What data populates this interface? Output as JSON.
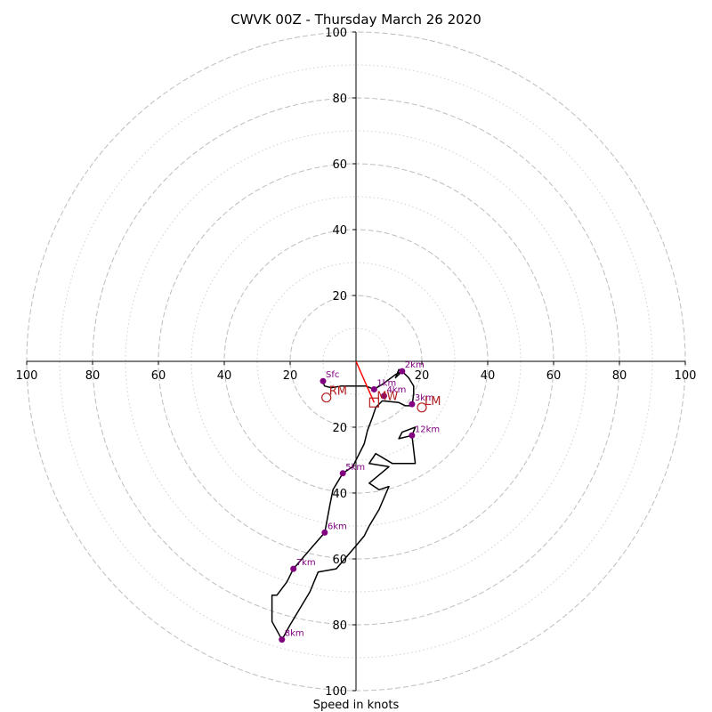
{
  "chart_data": {
    "type": "hodograph",
    "title": "CWVK 00Z - Thursday March 26 2020",
    "xlabel": "Speed in knots",
    "xlim": [
      -100,
      100
    ],
    "ylim": [
      -100,
      100
    ],
    "ring_major": [
      20,
      40,
      60,
      80,
      100
    ],
    "ring_minor": [
      10,
      30,
      50,
      70,
      90
    ],
    "x_ticks": [
      {
        "value": -100,
        "label": "100"
      },
      {
        "value": -80,
        "label": "80"
      },
      {
        "value": -60,
        "label": "60"
      },
      {
        "value": -40,
        "label": "40"
      },
      {
        "value": -20,
        "label": "20"
      },
      {
        "value": 20,
        "label": "20"
      },
      {
        "value": 40,
        "label": "40"
      },
      {
        "value": 60,
        "label": "60"
      },
      {
        "value": 80,
        "label": "80"
      },
      {
        "value": 100,
        "label": "100"
      }
    ],
    "y_ticks": [
      {
        "value": 100,
        "label": "100"
      },
      {
        "value": 80,
        "label": "80"
      },
      {
        "value": 60,
        "label": "60"
      },
      {
        "value": 40,
        "label": "40"
      },
      {
        "value": 20,
        "label": "20"
      },
      {
        "value": -20,
        "label": "20"
      },
      {
        "value": -40,
        "label": "40"
      },
      {
        "value": -60,
        "label": "60"
      },
      {
        "value": -80,
        "label": "80"
      },
      {
        "value": -100,
        "label": "100"
      }
    ],
    "hodograph_trace": [
      [
        -10.5,
        -5.5
      ],
      [
        -9.5,
        -7.5
      ],
      [
        -7.5,
        -8
      ],
      [
        -4.5,
        -7.5
      ],
      [
        3,
        -7.5
      ],
      [
        5.5,
        -8.5
      ],
      [
        8,
        -7
      ],
      [
        10,
        -5.5
      ],
      [
        12,
        -4
      ],
      [
        14,
        -3
      ],
      [
        13,
        -4
      ],
      [
        12,
        -5
      ],
      [
        13,
        -2.5
      ],
      [
        14,
        -3
      ],
      [
        16,
        -5
      ],
      [
        17.5,
        -7.5
      ],
      [
        17.5,
        -10
      ],
      [
        17,
        -13.5
      ],
      [
        15,
        -13.5
      ],
      [
        13,
        -12.5
      ],
      [
        8,
        -12
      ],
      [
        6,
        -14
      ],
      [
        5,
        -17
      ],
      [
        3.5,
        -21
      ],
      [
        2.5,
        -25
      ],
      [
        -1,
        -32
      ],
      [
        -4,
        -34
      ],
      [
        -7,
        -39
      ],
      [
        -8,
        -44
      ],
      [
        -9.5,
        -52
      ],
      [
        -13,
        -56
      ],
      [
        -19,
        -63
      ],
      [
        -21,
        -67
      ],
      [
        -24,
        -71
      ],
      [
        -25.5,
        -71
      ],
      [
        -25.5,
        -79
      ],
      [
        -22.5,
        -84.5
      ],
      [
        -20,
        -80
      ],
      [
        -14,
        -70
      ],
      [
        -11.5,
        -64
      ],
      [
        -6,
        -63
      ],
      [
        0,
        -56
      ],
      [
        2.5,
        -53
      ],
      [
        4,
        -50
      ],
      [
        7,
        -45
      ],
      [
        10,
        -38
      ],
      [
        7,
        -39
      ],
      [
        4,
        -37
      ],
      [
        10,
        -32
      ],
      [
        4,
        -31
      ],
      [
        6,
        -28
      ],
      [
        11,
        -31
      ],
      [
        18,
        -31
      ],
      [
        17,
        -22.5
      ],
      [
        13,
        -23.5
      ],
      [
        14,
        -21.5
      ],
      [
        18,
        -20
      ],
      [
        17,
        -22.5
      ]
    ],
    "height_markers": [
      {
        "label": "Sfc",
        "x": -10,
        "y": -6
      },
      {
        "label": "1km",
        "x": 5.5,
        "y": -8.5
      },
      {
        "label": "2km",
        "x": 14,
        "y": -3
      },
      {
        "label": "3km",
        "x": 17,
        "y": -13
      },
      {
        "label": "4km",
        "x": 8.5,
        "y": -10.5
      },
      {
        "label": "5km",
        "x": -4,
        "y": -34
      },
      {
        "label": "6km",
        "x": -9.5,
        "y": -52
      },
      {
        "label": "7km",
        "x": -19,
        "y": -63
      },
      {
        "label": "8km",
        "x": -22.5,
        "y": -84.5
      },
      {
        "label": "12km",
        "x": 17,
        "y": -22.5
      }
    ],
    "motions": [
      {
        "label": "RM",
        "x": -9,
        "y": -11,
        "symbol": "circle"
      },
      {
        "label": "LM",
        "x": 20,
        "y": -14,
        "symbol": "circle"
      },
      {
        "label": "MW",
        "x": 5.5,
        "y": -12.5,
        "symbol": "square"
      }
    ],
    "storm_motion_vector": {
      "x": 5.5,
      "y": -12.5
    },
    "colors": {
      "trace": "#000000",
      "markers": "#800080",
      "motion": "#b22222",
      "vector": "#ff0000",
      "rings": "#bdbdbd"
    }
  }
}
